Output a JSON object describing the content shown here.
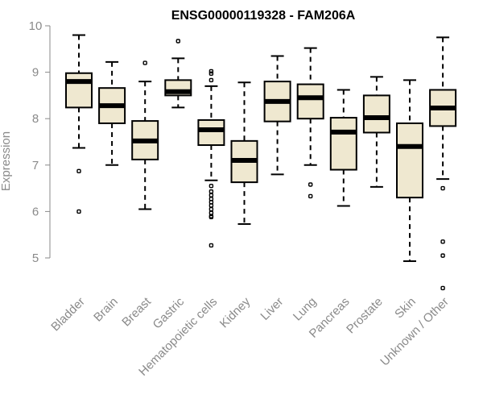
{
  "chart_data": {
    "type": "boxplot",
    "title": "ENSG00000119328 - FAM206A",
    "xlabel": "",
    "ylabel": "Expression",
    "ylim": [
      4.0,
      10.0
    ],
    "yticks": [
      5,
      6,
      7,
      8,
      9,
      10
    ],
    "grid": false,
    "box_fill": "#efe8d0",
    "axis_color": "#8a8a8a",
    "categories": [
      "Bladder",
      "Brain",
      "Breast",
      "Gastric",
      "Hematopoietic cells",
      "Kidney",
      "Liver",
      "Lung",
      "Pancreas",
      "Prostate",
      "Skin",
      "Unknown / Other"
    ],
    "boxes": [
      {
        "min": 7.37,
        "q1": 8.24,
        "median": 8.8,
        "q3": 8.98,
        "max": 9.8,
        "outliers": [
          6.87,
          6.0
        ]
      },
      {
        "min": 7.0,
        "q1": 7.9,
        "median": 8.28,
        "q3": 8.66,
        "max": 9.22,
        "outliers": []
      },
      {
        "min": 6.05,
        "q1": 7.12,
        "median": 7.52,
        "q3": 7.95,
        "max": 8.8,
        "outliers": [
          9.2
        ]
      },
      {
        "min": 8.24,
        "q1": 8.5,
        "median": 8.58,
        "q3": 8.83,
        "max": 9.3,
        "outliers": [
          9.67
        ]
      },
      {
        "min": 6.67,
        "q1": 7.43,
        "median": 7.76,
        "q3": 7.97,
        "max": 8.7,
        "outliers": [
          8.83,
          8.97,
          9.02,
          6.55,
          6.43,
          6.35,
          6.27,
          6.2,
          6.13,
          6.05,
          5.97,
          5.9,
          5.88,
          5.27
        ]
      },
      {
        "min": 5.73,
        "q1": 6.63,
        "median": 7.1,
        "q3": 7.52,
        "max": 8.78,
        "outliers": []
      },
      {
        "min": 6.8,
        "q1": 7.94,
        "median": 8.37,
        "q3": 8.8,
        "max": 9.35,
        "outliers": []
      },
      {
        "min": 7.0,
        "q1": 8.0,
        "median": 8.45,
        "q3": 8.74,
        "max": 9.52,
        "outliers": [
          6.58,
          6.33
        ]
      },
      {
        "min": 6.12,
        "q1": 6.9,
        "median": 7.71,
        "q3": 8.02,
        "max": 8.62,
        "outliers": []
      },
      {
        "min": 6.53,
        "q1": 7.7,
        "median": 8.02,
        "q3": 8.5,
        "max": 8.9,
        "outliers": []
      },
      {
        "min": 4.93,
        "q1": 6.3,
        "median": 7.4,
        "q3": 7.9,
        "max": 8.83,
        "outliers": []
      },
      {
        "min": 6.7,
        "q1": 7.84,
        "median": 8.23,
        "q3": 8.62,
        "max": 9.75,
        "outliers": [
          6.5,
          5.35,
          5.05,
          4.35
        ]
      }
    ]
  }
}
